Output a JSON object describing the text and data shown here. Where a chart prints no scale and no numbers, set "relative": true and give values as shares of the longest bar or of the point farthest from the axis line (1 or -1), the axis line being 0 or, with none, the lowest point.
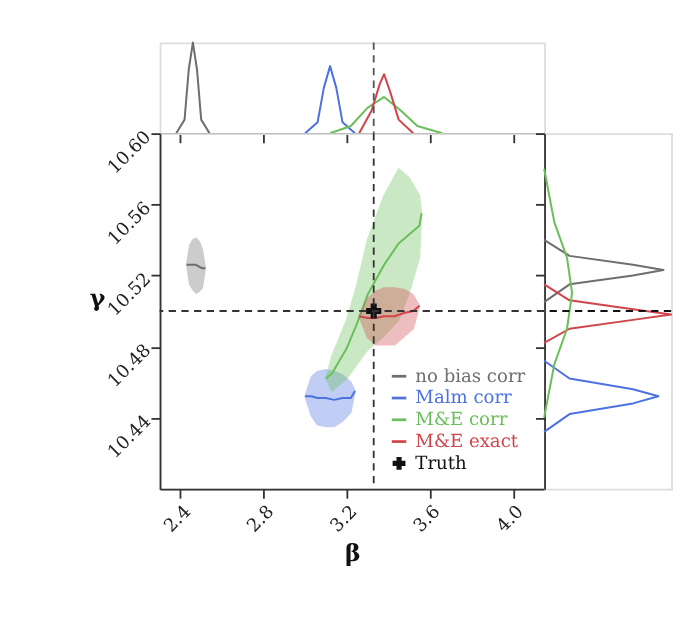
{
  "chart_data": [
    {
      "type": "line",
      "relative": true,
      "xlim": [
        2.3,
        4.15
      ],
      "xticks": [
        2.4,
        2.8,
        3.2,
        3.6,
        4.0
      ],
      "tick_labels": false,
      "ref_lines": [
        {
          "axis": "x",
          "value": 3.33,
          "line_style": "dashed",
          "color": "#555555"
        }
      ],
      "series": [
        {
          "color": "#6e6e6e",
          "x": [
            2.38,
            2.42,
            2.44,
            2.46,
            2.48,
            2.5,
            2.54
          ],
          "values": [
            0,
            0.15,
            0.7,
            1,
            0.7,
            0.15,
            0
          ]
        },
        {
          "color": "#4c72e0",
          "x": [
            3.0,
            3.06,
            3.09,
            3.12,
            3.15,
            3.18,
            3.24
          ],
          "values": [
            0,
            0.12,
            0.5,
            0.74,
            0.5,
            0.12,
            0
          ]
        },
        {
          "color": "#6abf5a",
          "x": [
            3.12,
            3.22,
            3.3,
            3.38,
            3.46,
            3.54,
            3.66
          ],
          "values": [
            0,
            0.08,
            0.28,
            0.4,
            0.25,
            0.08,
            0
          ]
        },
        {
          "color": "#d0454c",
          "x": [
            3.26,
            3.32,
            3.36,
            3.38,
            3.41,
            3.45,
            3.52
          ],
          "values": [
            0,
            0.25,
            0.55,
            0.65,
            0.45,
            0.15,
            0
          ]
        }
      ]
    },
    {
      "type": "line",
      "xlabel": "β",
      "ylabel": "γ",
      "xlim": [
        2.3,
        4.15
      ],
      "ylim": [
        10.4,
        10.6
      ],
      "xticks": [
        2.4,
        2.8,
        3.2,
        3.6,
        {
          "value": 4.0,
          "label": "4.0"
        }
      ],
      "yticks": [
        10.44,
        10.48,
        10.52,
        10.56,
        {
          "value": 10.6,
          "label": "10.60"
        }
      ],
      "legend": "bottom right",
      "ref_lines": [
        {
          "axis": "x",
          "value": 3.33,
          "line_style": "dashed",
          "color": "#333333"
        },
        {
          "axis": "y",
          "value": 10.5,
          "line_style": "dashed",
          "color": "#333333"
        }
      ],
      "series": [
        {
          "name": "no bias corr",
          "color": "#6e6e6e",
          "x": [
            2.43,
            2.445,
            2.46,
            2.475,
            2.49,
            2.505,
            2.52
          ],
          "values": [
            10.526,
            10.526,
            10.526,
            10.526,
            10.525,
            10.524,
            10.524
          ],
          "lower": [
            10.526,
            10.515,
            10.512,
            10.51,
            10.511,
            10.513,
            10.524
          ],
          "upper": [
            10.526,
            10.537,
            10.54,
            10.541,
            10.539,
            10.535,
            10.524
          ]
        },
        {
          "name": "Malm corr",
          "color": "#4c72e0",
          "x": [
            3.0,
            3.03,
            3.06,
            3.1,
            3.14,
            3.18,
            3.22,
            3.24
          ],
          "values": [
            10.452,
            10.452,
            10.451,
            10.451,
            10.45,
            10.451,
            10.451,
            10.455
          ],
          "lower": [
            10.452,
            10.441,
            10.436,
            10.435,
            10.435,
            10.438,
            10.443,
            10.455
          ],
          "upper": [
            10.452,
            10.463,
            10.466,
            10.467,
            10.466,
            10.464,
            10.46,
            10.455
          ]
        },
        {
          "name": "M&E corr",
          "color": "#6abf5a",
          "x": [
            3.1,
            3.13,
            3.2,
            3.25,
            3.3,
            3.38,
            3.45,
            3.5,
            3.55,
            3.56
          ],
          "values": [
            10.462,
            10.465,
            10.479,
            10.493,
            10.509,
            10.526,
            10.538,
            10.543,
            10.548,
            10.555
          ],
          "lower": [
            10.462,
            10.455,
            10.462,
            10.47,
            10.478,
            10.486,
            10.495,
            10.51,
            10.53,
            10.555
          ],
          "upper": [
            10.462,
            10.475,
            10.495,
            10.515,
            10.54,
            10.565,
            10.58,
            10.575,
            10.565,
            10.555
          ]
        },
        {
          "name": "M&E exact",
          "color": "#d0454c",
          "x": [
            3.26,
            3.3,
            3.34,
            3.38,
            3.43,
            3.48,
            3.52,
            3.55
          ],
          "values": [
            10.497,
            10.496,
            10.496,
            10.497,
            10.497,
            10.499,
            10.5,
            10.503
          ],
          "lower": [
            10.497,
            10.485,
            10.481,
            10.481,
            10.481,
            10.486,
            10.49,
            10.503
          ],
          "upper": [
            10.497,
            10.507,
            10.511,
            10.513,
            10.513,
            10.512,
            10.509,
            10.503
          ]
        },
        {
          "name": "Truth",
          "type": "scatter",
          "marker": "cross",
          "color": "#111111",
          "x": [
            3.33
          ],
          "values": [
            10.5
          ]
        }
      ]
    },
    {
      "type": "line",
      "orientation": "horizontal",
      "relative": true,
      "ylim": [
        10.4,
        10.6
      ],
      "yticks": [
        10.44,
        10.48,
        10.52,
        10.56,
        10.6
      ],
      "tick_labels": false,
      "ref_lines": [
        {
          "axis": "y",
          "value": 10.5,
          "line_style": "dashed",
          "color": "#111111"
        }
      ],
      "series": [
        {
          "color": "#6e6e6e",
          "x": [
            10.505,
            10.515,
            10.52,
            10.523,
            10.526,
            10.531,
            10.54
          ],
          "values": [
            0,
            0.2,
            0.7,
            0.94,
            0.7,
            0.2,
            0
          ]
        },
        {
          "color": "#d0454c",
          "x": [
            10.482,
            10.49,
            10.495,
            10.498,
            10.501,
            10.506,
            10.515
          ],
          "values": [
            0,
            0.2,
            0.7,
            1,
            0.7,
            0.2,
            0
          ]
        },
        {
          "color": "#4c72e0",
          "x": [
            10.432,
            10.442,
            10.448,
            10.452,
            10.456,
            10.462,
            10.472
          ],
          "values": [
            0,
            0.2,
            0.7,
            0.9,
            0.7,
            0.2,
            0
          ]
        },
        {
          "color": "#6abf5a",
          "x": [
            10.44,
            10.47,
            10.49,
            10.51,
            10.53,
            10.55,
            10.58
          ],
          "values": [
            0,
            0.08,
            0.18,
            0.22,
            0.18,
            0.08,
            0
          ]
        }
      ]
    }
  ]
}
